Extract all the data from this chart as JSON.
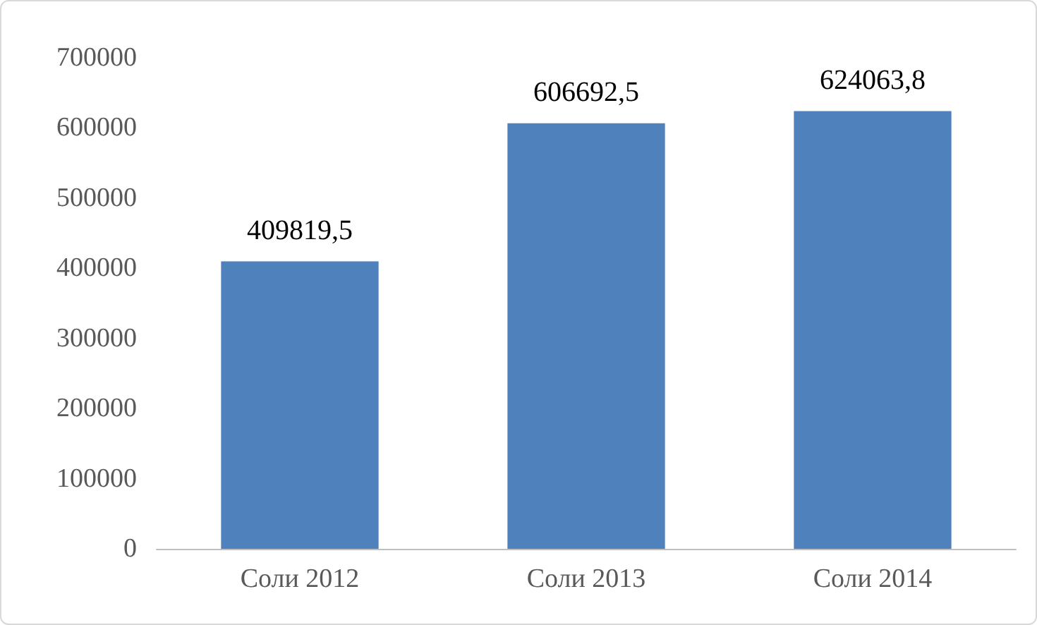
{
  "chart_data": {
    "type": "bar",
    "categories": [
      "Соли 2012",
      "Соли 2013",
      "Соли 2014"
    ],
    "values": [
      409819.5,
      606692.5,
      624063.8
    ],
    "value_labels": [
      "409819,5",
      "606692,5",
      "624063,8"
    ],
    "color": "#4f81bd",
    "ylim": [
      0,
      700000
    ],
    "yticks": [
      0,
      100000,
      200000,
      300000,
      400000,
      500000,
      600000,
      700000
    ],
    "grid": false
  }
}
